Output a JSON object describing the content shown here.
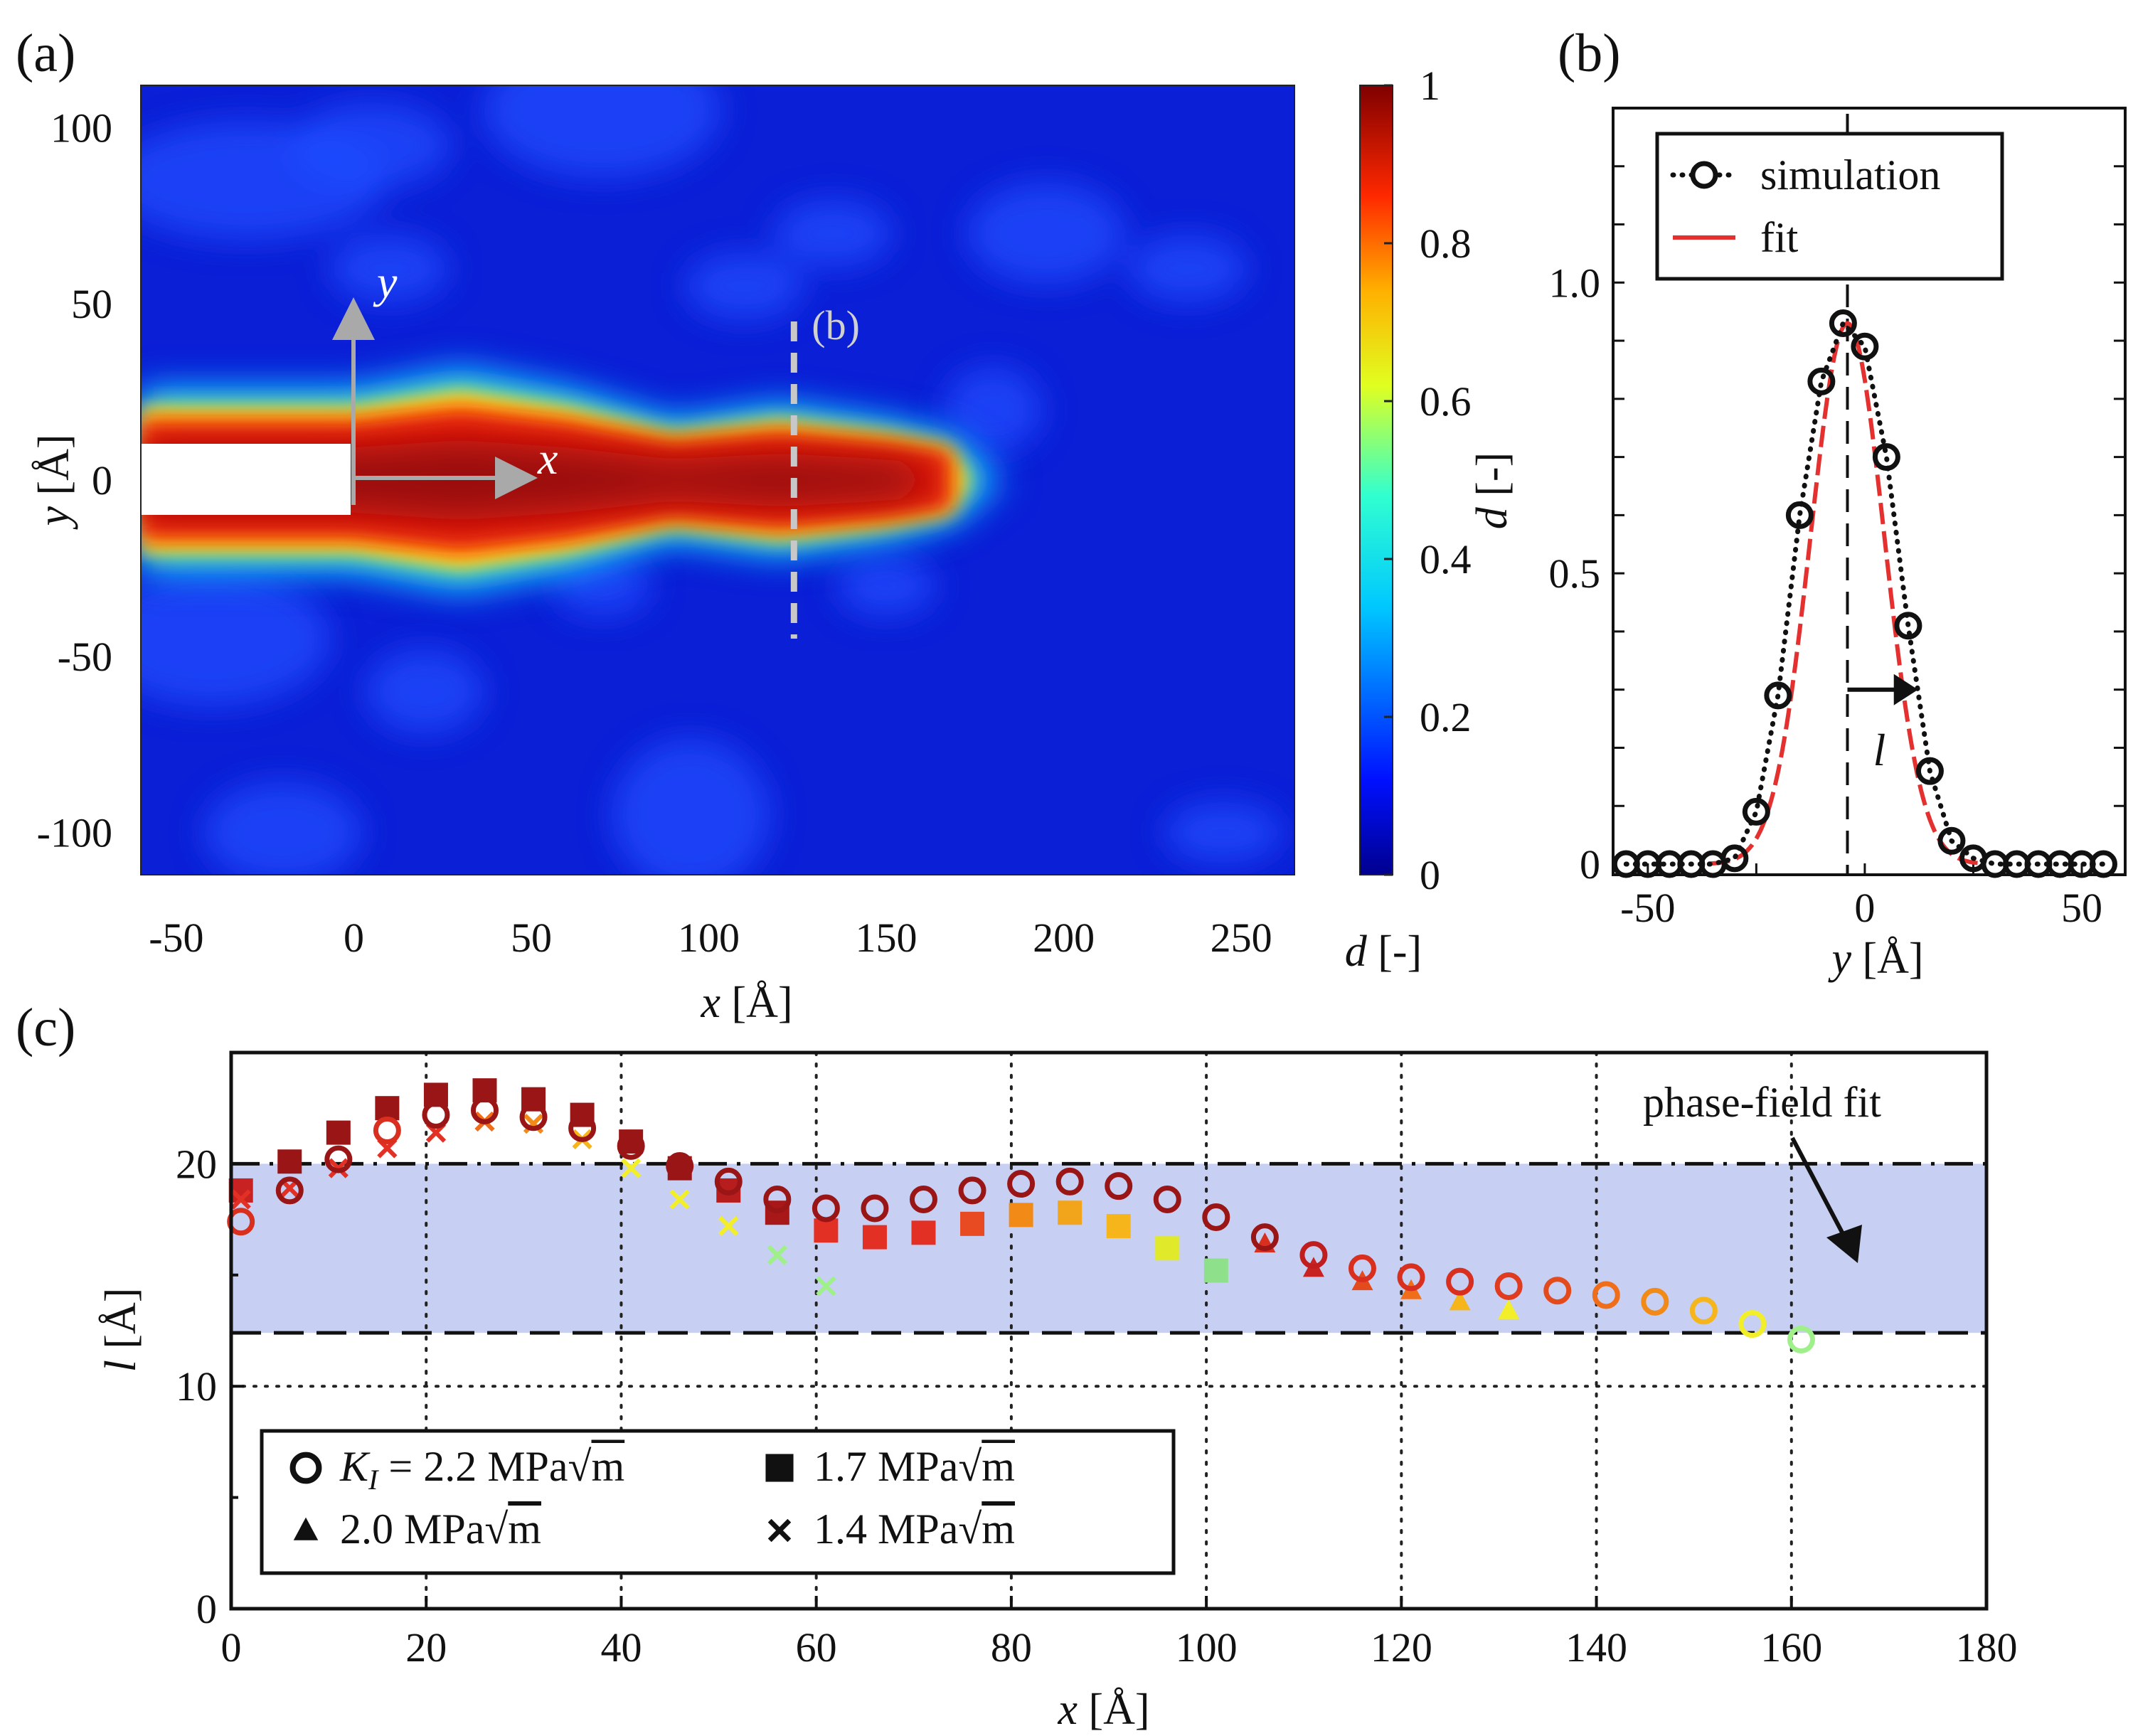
{
  "chart_data": [
    {
      "panel": "(a)",
      "type": "heatmap",
      "xlabel_var": "x",
      "xlabel_unit": " [Å]",
      "ylabel_var": "y",
      "ylabel_unit": " [Å]",
      "xticks": [
        "-50",
        "0",
        "50",
        "100",
        "150",
        "200",
        "250"
      ],
      "yticks": [
        "100",
        "50",
        "0",
        "-50",
        "-100"
      ],
      "xlim": [
        -60,
        265
      ],
      "ylim": [
        -112,
        112
      ],
      "colorbar": {
        "label_var": "d",
        "label_unit": " [-]",
        "ticks": [
          "1",
          "0.8",
          "0.6",
          "0.4",
          "0.2",
          "0"
        ],
        "range": [
          0,
          1
        ]
      },
      "annotations": {
        "section_marker": "(b)",
        "arrow_x": "x",
        "arrow_y": "y"
      },
      "section_x": 124,
      "crack_notch_x_range": [
        -60,
        -5
      ],
      "damage_band": [
        {
          "x": 0,
          "half_width": 22
        },
        {
          "x": 30,
          "half_width": 27
        },
        {
          "x": 60,
          "half_width": 22
        },
        {
          "x": 90,
          "half_width": 14
        },
        {
          "x": 120,
          "half_width": 18
        },
        {
          "x": 150,
          "half_width": 14
        },
        {
          "x": 168,
          "half_width": 10
        }
      ],
      "colors": {
        "background": "#0a1fd6",
        "core": "#8e0a0a",
        "notch": "#ffffff"
      }
    },
    {
      "panel": "(b)",
      "type": "line",
      "xlabel_var": "y",
      "xlabel_unit": " [Å]",
      "ylabel_var": "d",
      "ylabel_unit": " [-]",
      "xticks": [
        "-50",
        "0",
        "50"
      ],
      "yticks": [
        "0",
        "0.5",
        "1.0"
      ],
      "xlim": [
        -58,
        60
      ],
      "ylim": [
        0,
        1.3
      ],
      "series": [
        {
          "name": "simulation",
          "marker": "open-circle",
          "line": "dotted",
          "color": "#000000",
          "x": [
            -55,
            -50,
            -45,
            -40,
            -35,
            -30,
            -25,
            -20,
            -15,
            -10,
            -5,
            0,
            5,
            10,
            15,
            20,
            25,
            30,
            35,
            40,
            45,
            50,
            55
          ],
          "y": [
            0.0,
            0.0,
            0.0,
            0.0,
            0.0,
            0.01,
            0.09,
            0.29,
            0.6,
            0.83,
            0.93,
            0.89,
            0.7,
            0.41,
            0.16,
            0.04,
            0.01,
            0.0,
            0.0,
            0.0,
            0.0,
            0.0,
            0.0
          ]
        },
        {
          "name": "fit",
          "marker": "none",
          "line": "solid",
          "color": "#e53030",
          "center": -4,
          "peak": 0.93,
          "width": 17
        }
      ],
      "annotations": {
        "width_symbol": "l",
        "center_line_x": -4
      }
    },
    {
      "panel": "(c)",
      "type": "scatter",
      "xlabel_var": "x",
      "xlabel_unit": " [Å]",
      "ylabel_var": "l",
      "ylabel_unit": " [Å]",
      "xticks": [
        "0",
        "20",
        "40",
        "60",
        "80",
        "100",
        "120",
        "140",
        "160",
        "180"
      ],
      "yticks": [
        "0",
        "10",
        "20"
      ],
      "xlim": [
        0,
        180
      ],
      "ylim": [
        0,
        25
      ],
      "band": {
        "ymin": 12.4,
        "ymax": 20.0,
        "color": "#c7d0f2"
      },
      "annotation": "phase-field fit",
      "legend": [
        {
          "prefix": "K",
          "sub": "I",
          "text": " = 2.2 MPa",
          "root": "m",
          "marker": "open-circle"
        },
        {
          "prefix": "",
          "sub": "",
          "text": "1.7 MPa",
          "root": "m",
          "marker": "square"
        },
        {
          "prefix": "",
          "sub": "",
          "text": "2.0 MPa",
          "root": "m",
          "marker": "triangle"
        },
        {
          "prefix": "",
          "sub": "",
          "text": "1.4 MPa",
          "root": "m",
          "marker": "cross"
        }
      ],
      "series": [
        {
          "name": "2.2 MPa√m",
          "marker": "open-circle",
          "x": [
            1,
            6,
            11,
            16,
            21,
            26,
            31,
            36,
            41,
            46,
            51,
            56,
            61,
            66,
            71,
            76,
            81,
            86,
            91,
            96,
            101,
            106,
            111,
            116,
            121,
            126,
            131,
            136,
            141,
            146,
            151,
            156,
            161
          ],
          "y": [
            17.4,
            18.8,
            20.2,
            21.5,
            22.2,
            22.4,
            22.1,
            21.6,
            20.8,
            19.9,
            19.2,
            18.4,
            18.0,
            18.0,
            18.4,
            18.8,
            19.1,
            19.2,
            19.0,
            18.4,
            17.6,
            16.7,
            15.9,
            15.3,
            14.9,
            14.7,
            14.5,
            14.3,
            14.1,
            13.8,
            13.4,
            12.8,
            12.1
          ],
          "colors": [
            "#d92f1f",
            "#9a1515",
            "#9a1515",
            "#d92f1f",
            "#9a1515",
            "#9a1515",
            "#9a1515",
            "#9a1515",
            "#9a1515",
            "#9a1515",
            "#9a1515",
            "#9a1515",
            "#9a1515",
            "#9a1515",
            "#9a1515",
            "#9a1515",
            "#9a1515",
            "#9a1515",
            "#9a1515",
            "#9a1515",
            "#9a1515",
            "#9a1515",
            "#c01e1e",
            "#d92f1f",
            "#d92f1f",
            "#d92f1f",
            "#e03a1f",
            "#e34a1c",
            "#f06d19",
            "#f28a18",
            "#f5b51b",
            "#f2ef2a",
            "#9ff08a"
          ]
        },
        {
          "name": "1.7 MPa√m",
          "marker": "square",
          "x": [
            1,
            6,
            11,
            16,
            21,
            26,
            31,
            36,
            41,
            46,
            51,
            56,
            61,
            66,
            71,
            76,
            81,
            86,
            91,
            96,
            101
          ],
          "y": [
            18.8,
            20.1,
            21.4,
            22.5,
            23.1,
            23.3,
            22.9,
            22.2,
            21.0,
            19.8,
            18.8,
            17.8,
            17.0,
            16.7,
            16.9,
            17.3,
            17.7,
            17.8,
            17.2,
            16.2,
            15.2
          ],
          "colors": [
            "#c82222",
            "#9a1515",
            "#9a1515",
            "#9a1515",
            "#9a1515",
            "#9a1515",
            "#9a1515",
            "#9a1515",
            "#9a1515",
            "#9a1515",
            "#b81d1d",
            "#a81818",
            "#e33025",
            "#e33025",
            "#e33025",
            "#e84a22",
            "#f28a18",
            "#f2a41b",
            "#f5b51b",
            "#e0ea2a",
            "#8fe08a"
          ]
        },
        {
          "name": "2.0 MPa√m",
          "marker": "triangle",
          "x": [
            106,
            111,
            116,
            121,
            126,
            131
          ],
          "y": [
            16.4,
            15.3,
            14.7,
            14.3,
            13.8,
            13.4
          ],
          "colors": [
            "#d92f1f",
            "#c82222",
            "#e34a1c",
            "#f06d19",
            "#f5b51b",
            "#f2ef2a"
          ]
        },
        {
          "name": "1.4 MPa√m",
          "marker": "cross",
          "x": [
            1,
            6,
            11,
            16,
            21,
            26,
            31,
            36,
            41,
            46,
            51,
            56,
            61
          ],
          "y": [
            18.4,
            18.9,
            19.8,
            20.7,
            21.4,
            21.9,
            21.8,
            21.1,
            19.8,
            18.4,
            17.2,
            15.9,
            14.5
          ],
          "colors": [
            "#e33025",
            "#e33025",
            "#e33025",
            "#e33025",
            "#e33025",
            "#f06d19",
            "#f28a18",
            "#f5b51b",
            "#f2ef2a",
            "#f2ef2a",
            "#f2ef2a",
            "#9ff08a",
            "#9ff08a"
          ]
        }
      ]
    }
  ],
  "panel_labels": {
    "a": "(a)",
    "b": "(b)",
    "c": "(c)"
  }
}
